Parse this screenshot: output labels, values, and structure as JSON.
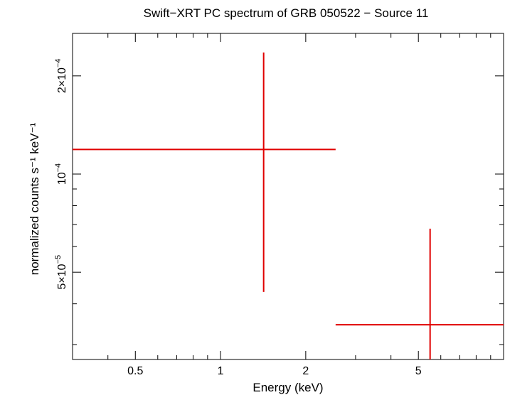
{
  "chart_data": {
    "type": "scatter",
    "title": "Swift−XRT PC spectrum of GRB 050522 − Source 11",
    "xlabel": "Energy (keV)",
    "ylabel": "normalized counts s⁻¹ keV⁻¹",
    "x_scale": "log",
    "y_scale": "log",
    "xlim": [
      0.3,
      10.0
    ],
    "ylim": [
      2.7e-05,
      0.00027
    ],
    "x_ticks": [
      {
        "value": 0.5,
        "label": "0.5"
      },
      {
        "value": 1,
        "label": "1"
      },
      {
        "value": 2,
        "label": "2"
      },
      {
        "value": 5,
        "label": "5"
      }
    ],
    "y_ticks": [
      {
        "value": 5e-05,
        "mantissa": "5×10",
        "exp": "−5"
      },
      {
        "value": 0.0001,
        "mantissa": "10",
        "exp": "−4"
      },
      {
        "value": 0.0002,
        "mantissa": "2×10",
        "exp": "−4"
      }
    ],
    "grid": false,
    "color": "#e00000",
    "points": [
      {
        "x": 1.42,
        "x_lo": 0.3,
        "x_hi": 2.55,
        "y": 0.000119,
        "y_lo": 4.35e-05,
        "y_hi": 0.000236
      },
      {
        "x": 5.5,
        "x_lo": 2.55,
        "x_hi": 10.0,
        "y": 3.45e-05,
        "y_lo": 2.7e-05,
        "y_hi": 6.8e-05
      }
    ]
  }
}
